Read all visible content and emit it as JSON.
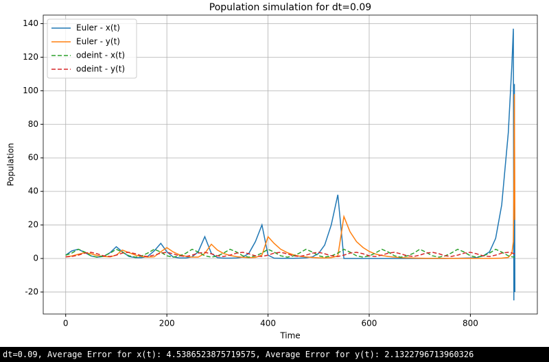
{
  "chart_data": {
    "type": "line",
    "title": "Population simulation for dt=0.09",
    "x_label": "Time",
    "y_label": "Population",
    "x": [
      0,
      12,
      25,
      38,
      50,
      62,
      75,
      88,
      100,
      112,
      125,
      138,
      150,
      162,
      175,
      188,
      200,
      212,
      225,
      238,
      250,
      262,
      275,
      288,
      300,
      312,
      325,
      338,
      350,
      362,
      375,
      388,
      400,
      412,
      425,
      438,
      450,
      462,
      475,
      488,
      500,
      512,
      525,
      538,
      550,
      562,
      575,
      588,
      600,
      612,
      625,
      638,
      650,
      662,
      675,
      688,
      700,
      712,
      725,
      738,
      750,
      762,
      775,
      788,
      800,
      812,
      825,
      838,
      850,
      862,
      875,
      882,
      885,
      886,
      887,
      888
    ],
    "series": [
      {
        "name": "Euler - x(t)",
        "color": "#1f77b4",
        "linestyle": "solid",
        "values": [
          2,
          4.5,
          5.5,
          3.5,
          1.5,
          0.8,
          1.2,
          3.5,
          7,
          4,
          1.2,
          0.5,
          0.5,
          1.2,
          4.5,
          9,
          4,
          1,
          0.3,
          0.3,
          1,
          4,
          13,
          3,
          0.5,
          0.2,
          0.2,
          0.3,
          0.8,
          3,
          10,
          20,
          2,
          0.2,
          0.1,
          0.1,
          0.1,
          0.2,
          0.4,
          1,
          3,
          8,
          20,
          38,
          0,
          0,
          0,
          0,
          0,
          0,
          0,
          0,
          0,
          0,
          0,
          0,
          0,
          0,
          0,
          0,
          0,
          0.1,
          0.1,
          0.2,
          0.3,
          0.5,
          1.5,
          4,
          12,
          32,
          75,
          115,
          137,
          -25,
          104,
          -20
        ]
      },
      {
        "name": "Euler - y(t)",
        "color": "#ff7f0e",
        "linestyle": "solid",
        "values": [
          1,
          1.5,
          2.5,
          3.5,
          2.8,
          1.8,
          1.2,
          1,
          2,
          5,
          3.5,
          2,
          1.2,
          0.8,
          1,
          4,
          6.5,
          4,
          2.2,
          1.3,
          0.8,
          0.8,
          3,
          8.5,
          5,
          3,
          1.8,
          1.1,
          0.7,
          0.5,
          0.6,
          2,
          13,
          9,
          5.5,
          3.5,
          2.2,
          1.4,
          0.9,
          0.6,
          0.4,
          0.3,
          0.5,
          1.5,
          25,
          16,
          10,
          6.5,
          4.2,
          2.7,
          1.8,
          1.2,
          0.8,
          0.5,
          0.35,
          0.25,
          0.15,
          0.1,
          0.1,
          0.1,
          0.1,
          0.05,
          0.05,
          0.05,
          0.05,
          0.05,
          0.05,
          0.05,
          0.1,
          0.2,
          0.6,
          3,
          10,
          40,
          98,
          23
        ]
      },
      {
        "name": "odeint - x(t)",
        "color": "#2ca02c",
        "linestyle": "dashed",
        "values": [
          2,
          3.2,
          5.5,
          3.8,
          1.6,
          0.8,
          1.5,
          3.2,
          5.5,
          3.8,
          1.6,
          0.8,
          1.5,
          3.2,
          5.5,
          3.8,
          1.6,
          0.8,
          1.5,
          3.2,
          5.5,
          3.8,
          1.6,
          0.8,
          1.5,
          3.2,
          5.5,
          3.8,
          1.6,
          0.8,
          1.5,
          3.2,
          5.5,
          3.8,
          1.6,
          0.8,
          1.5,
          3.2,
          5.5,
          3.8,
          1.6,
          0.8,
          1.5,
          3.2,
          5.5,
          3.8,
          1.6,
          0.8,
          1.5,
          3.2,
          5.5,
          3.8,
          1.6,
          0.8,
          1.5,
          3.2,
          5.5,
          3.8,
          1.6,
          0.8,
          1.5,
          3.2,
          5.5,
          3.8,
          1.6,
          0.8,
          1.5,
          3.2,
          5.5,
          3.8,
          1.6,
          1,
          0.9,
          0.85,
          0.8,
          0.8
        ]
      },
      {
        "name": "odeint - y(t)",
        "color": "#d62728",
        "linestyle": "dashed",
        "values": [
          1,
          1.2,
          2,
          3.2,
          3.7,
          2.8,
          1.6,
          1.2,
          2,
          3.2,
          3.7,
          2.8,
          1.6,
          1.2,
          2,
          3.2,
          3.7,
          2.8,
          1.6,
          1.2,
          2,
          3.2,
          3.7,
          2.8,
          1.6,
          1.2,
          2,
          3.2,
          3.7,
          2.8,
          1.6,
          1.2,
          2,
          3.2,
          3.7,
          2.8,
          1.6,
          1.2,
          2,
          3.2,
          3.7,
          2.8,
          1.6,
          1.2,
          2,
          3.2,
          3.7,
          2.8,
          1.6,
          1.2,
          2,
          3.2,
          3.7,
          2.8,
          1.6,
          1.2,
          2,
          3.2,
          3.7,
          2.8,
          1.6,
          1.2,
          2,
          3.2,
          3.7,
          2.8,
          1.6,
          1.2,
          2,
          3.2,
          3.7,
          3.3,
          3,
          2.9,
          2.8,
          2.8
        ]
      }
    ],
    "xlim": [
      -44.4,
      932.4
    ],
    "ylim": [
      -33.1,
      145.1
    ],
    "xticks": [
      0,
      200,
      400,
      600,
      800
    ],
    "yticks": [
      -20,
      0,
      20,
      40,
      60,
      80,
      100,
      120,
      140
    ],
    "grid": true,
    "legend": "upper left"
  },
  "status_text": "dt=0.09, Average Error for x(t): 4.5386523875719575, Average Error for y(t): 2.1322796713960326"
}
